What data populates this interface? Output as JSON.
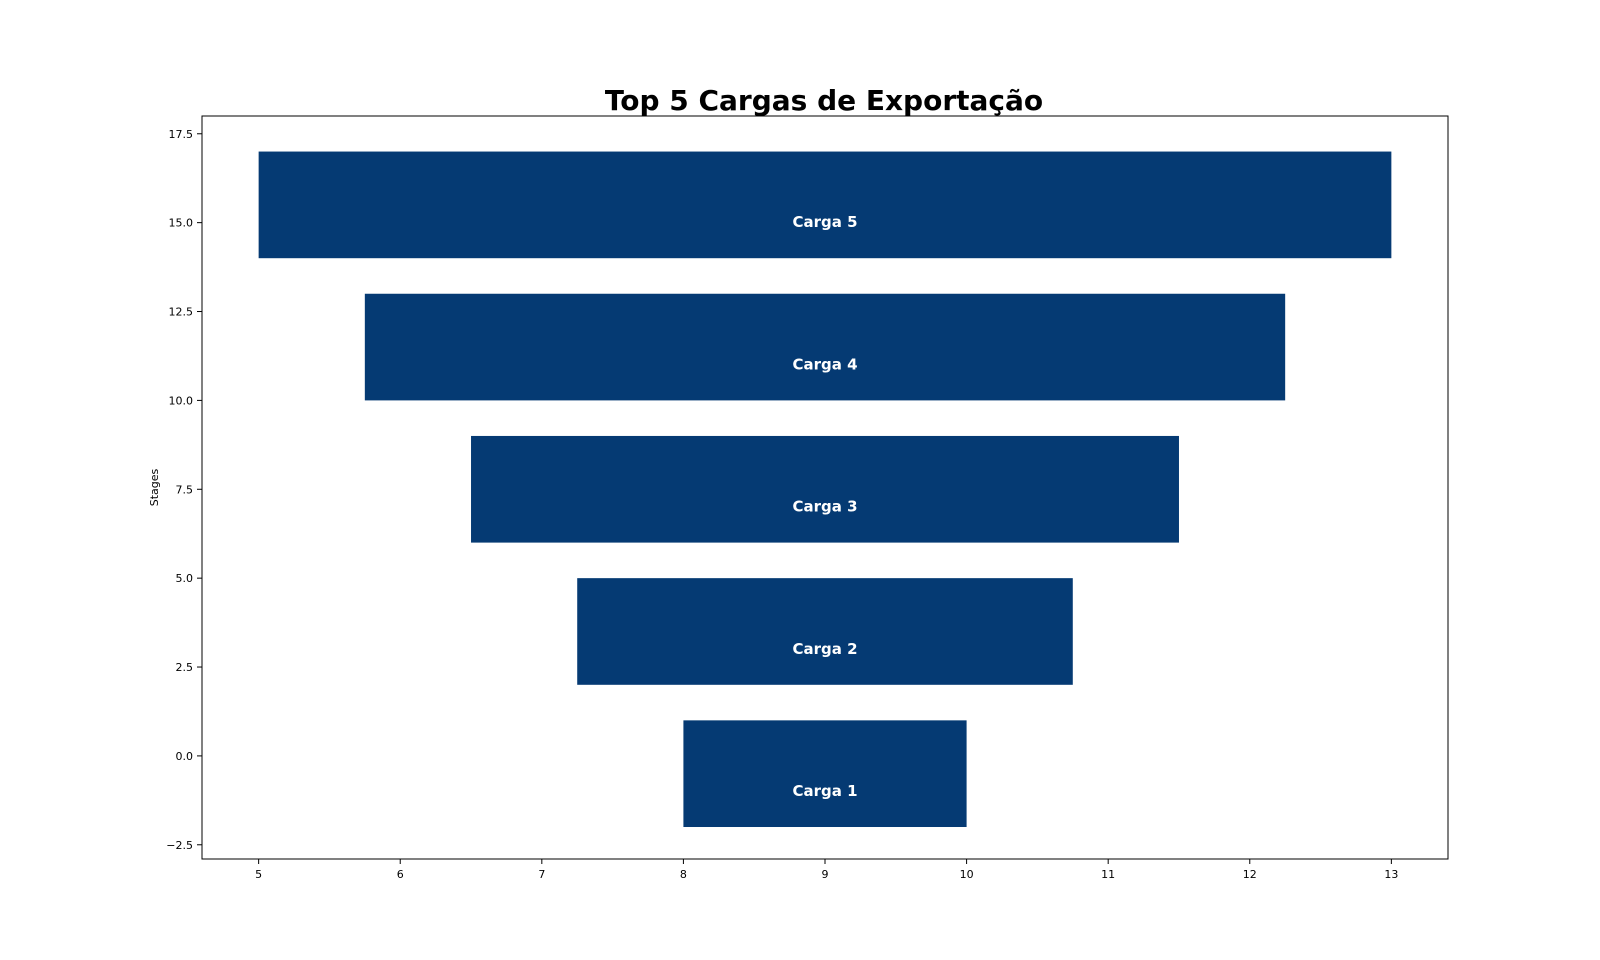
{
  "chart_data": {
    "type": "bar",
    "orientation": "funnel",
    "title": "Top 5 Cargas de Exportação",
    "xlabel": "",
    "ylabel": "Stages",
    "xlim": [
      4.6,
      13.4
    ],
    "ylim": [
      -2.9,
      18.0
    ],
    "xticks": [
      5,
      6,
      7,
      8,
      9,
      10,
      11,
      12,
      13
    ],
    "yticks": [
      -2.5,
      0.0,
      2.5,
      5.0,
      7.5,
      10.0,
      12.5,
      15.0,
      17.5
    ],
    "xtick_labels": [
      "5",
      "6",
      "7",
      "8",
      "9",
      "10",
      "11",
      "12",
      "13"
    ],
    "ytick_labels": [
      "−2.5",
      "0.0",
      "2.5",
      "5.0",
      "7.5",
      "10.0",
      "12.5",
      "15.0",
      "17.5"
    ],
    "grid": false,
    "bar_color": "#053a73",
    "label_color": "#ffffff",
    "bars": [
      {
        "label": "Carga 1",
        "x_start": 8.0,
        "x_end": 10.0,
        "y_bottom": -2.0,
        "y_top": 1.0,
        "label_y": -1.0
      },
      {
        "label": "Carga 2",
        "x_start": 7.25,
        "x_end": 10.75,
        "y_bottom": 2.0,
        "y_top": 5.0,
        "label_y": 3.0
      },
      {
        "label": "Carga 3",
        "x_start": 6.5,
        "x_end": 11.5,
        "y_bottom": 6.0,
        "y_top": 9.0,
        "label_y": 7.0
      },
      {
        "label": "Carga 4",
        "x_start": 5.75,
        "x_end": 12.25,
        "y_bottom": 10.0,
        "y_top": 13.0,
        "label_y": 11.0
      },
      {
        "label": "Carga 5",
        "x_start": 5.0,
        "x_end": 13.0,
        "y_bottom": 14.0,
        "y_top": 17.0,
        "label_y": 15.0
      }
    ]
  }
}
